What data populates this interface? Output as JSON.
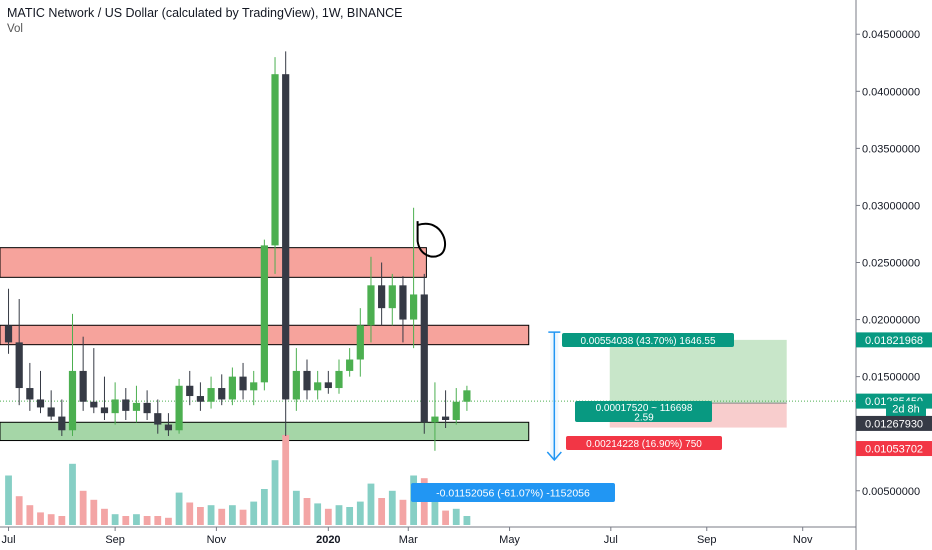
{
  "header": {
    "title": "MATIC Network / US Dollar (calculated by TradingView), 1W, BINANCE",
    "indicator": "Vol"
  },
  "colors": {
    "up": "#4caf50",
    "down": "#363a45",
    "vol_up": "#86cfc5",
    "vol_down": "#f3a5a5",
    "resistance_zone": "#f6a39c",
    "support_zone": "#a5d6a7",
    "measure": "#2196f3",
    "profit_zone": "#c8e6c9",
    "loss_zone": "#f8cdcd",
    "badge_green": "#089981",
    "badge_red": "#f23645",
    "badge_dark": "#363a45",
    "badge_blue": "#2196f3"
  },
  "chart_data": {
    "type": "candlestick",
    "title": "MATIC Network / US Dollar (calculated by TradingView), 1W, BINANCE",
    "interval": "1W",
    "x_ticks": [
      {
        "label": "Jul",
        "week": 0
      },
      {
        "label": "Sep",
        "week": 10
      },
      {
        "label": "Nov",
        "week": 19.5
      },
      {
        "label": "2020",
        "week": 30
      },
      {
        "label": "Mar",
        "week": 37.5
      },
      {
        "label": "May",
        "week": 47
      },
      {
        "label": "Jul",
        "week": 56.5
      },
      {
        "label": "Sep",
        "week": 65.5
      },
      {
        "label": "Nov",
        "week": 74.5
      }
    ],
    "y_ticks": [
      "0.04500000",
      "0.04000000",
      "0.03500000",
      "0.03000000",
      "0.02500000",
      "0.02000000",
      "0.01500000",
      "0.00500000"
    ],
    "y_tick_values": [
      0.045,
      0.04,
      0.035,
      0.03,
      0.025,
      0.02,
      0.015,
      0.005
    ],
    "ylim": [
      0.002,
      0.048
    ],
    "xlim": [
      -0.8,
      79.5
    ],
    "candles": [
      {
        "o": 0.0195,
        "h": 0.0227,
        "l": 0.017,
        "c": 0.018
      },
      {
        "o": 0.018,
        "h": 0.0218,
        "l": 0.0125,
        "c": 0.014
      },
      {
        "o": 0.014,
        "h": 0.0162,
        "l": 0.012,
        "c": 0.013
      },
      {
        "o": 0.013,
        "h": 0.0155,
        "l": 0.0118,
        "c": 0.0123
      },
      {
        "o": 0.0123,
        "h": 0.0138,
        "l": 0.0112,
        "c": 0.0115
      },
      {
        "o": 0.0115,
        "h": 0.013,
        "l": 0.0098,
        "c": 0.0103
      },
      {
        "o": 0.0103,
        "h": 0.0205,
        "l": 0.0098,
        "c": 0.0155
      },
      {
        "o": 0.0155,
        "h": 0.0185,
        "l": 0.012,
        "c": 0.0128
      },
      {
        "o": 0.0128,
        "h": 0.0175,
        "l": 0.0118,
        "c": 0.0123
      },
      {
        "o": 0.0123,
        "h": 0.015,
        "l": 0.0112,
        "c": 0.0118
      },
      {
        "o": 0.0118,
        "h": 0.0145,
        "l": 0.0108,
        "c": 0.013
      },
      {
        "o": 0.013,
        "h": 0.014,
        "l": 0.0112,
        "c": 0.012
      },
      {
        "o": 0.012,
        "h": 0.0142,
        "l": 0.011,
        "c": 0.0127
      },
      {
        "o": 0.0127,
        "h": 0.0138,
        "l": 0.0112,
        "c": 0.0118
      },
      {
        "o": 0.0118,
        "h": 0.013,
        "l": 0.01,
        "c": 0.0108
      },
      {
        "o": 0.0108,
        "h": 0.0118,
        "l": 0.0098,
        "c": 0.0103
      },
      {
        "o": 0.0103,
        "h": 0.0148,
        "l": 0.01,
        "c": 0.0142
      },
      {
        "o": 0.0142,
        "h": 0.0155,
        "l": 0.0125,
        "c": 0.0133
      },
      {
        "o": 0.0133,
        "h": 0.0145,
        "l": 0.012,
        "c": 0.0128
      },
      {
        "o": 0.0128,
        "h": 0.015,
        "l": 0.0122,
        "c": 0.014
      },
      {
        "o": 0.014,
        "h": 0.0152,
        "l": 0.0125,
        "c": 0.013
      },
      {
        "o": 0.013,
        "h": 0.0158,
        "l": 0.0125,
        "c": 0.015
      },
      {
        "o": 0.015,
        "h": 0.0162,
        "l": 0.013,
        "c": 0.0138
      },
      {
        "o": 0.0138,
        "h": 0.0155,
        "l": 0.0125,
        "c": 0.0145
      },
      {
        "o": 0.0145,
        "h": 0.027,
        "l": 0.0138,
        "c": 0.0265
      },
      {
        "o": 0.0265,
        "h": 0.043,
        "l": 0.024,
        "c": 0.0415
      },
      {
        "o": 0.0415,
        "h": 0.0435,
        "l": 0.0098,
        "c": 0.013
      },
      {
        "o": 0.013,
        "h": 0.0175,
        "l": 0.012,
        "c": 0.0155
      },
      {
        "o": 0.0155,
        "h": 0.0165,
        "l": 0.013,
        "c": 0.0138
      },
      {
        "o": 0.0138,
        "h": 0.0155,
        "l": 0.013,
        "c": 0.0145
      },
      {
        "o": 0.0145,
        "h": 0.0155,
        "l": 0.0135,
        "c": 0.014
      },
      {
        "o": 0.014,
        "h": 0.0165,
        "l": 0.0135,
        "c": 0.0155
      },
      {
        "o": 0.0155,
        "h": 0.0175,
        "l": 0.015,
        "c": 0.0165
      },
      {
        "o": 0.0165,
        "h": 0.021,
        "l": 0.015,
        "c": 0.0195
      },
      {
        "o": 0.0195,
        "h": 0.0255,
        "l": 0.018,
        "c": 0.023
      },
      {
        "o": 0.023,
        "h": 0.025,
        "l": 0.0195,
        "c": 0.021
      },
      {
        "o": 0.021,
        "h": 0.024,
        "l": 0.0195,
        "c": 0.023
      },
      {
        "o": 0.023,
        "h": 0.0238,
        "l": 0.018,
        "c": 0.02
      },
      {
        "o": 0.02,
        "h": 0.0298,
        "l": 0.0175,
        "c": 0.0222
      },
      {
        "o": 0.0222,
        "h": 0.024,
        "l": 0.01,
        "c": 0.011
      },
      {
        "o": 0.011,
        "h": 0.0145,
        "l": 0.0085,
        "c": 0.0115
      },
      {
        "o": 0.0115,
        "h": 0.0138,
        "l": 0.0105,
        "c": 0.0112
      },
      {
        "o": 0.0112,
        "h": 0.014,
        "l": 0.0108,
        "c": 0.0128
      },
      {
        "o": 0.0128,
        "h": 0.0142,
        "l": 0.012,
        "c": 0.0138
      }
    ],
    "volume": [
      {
        "v": 0.55,
        "up": true
      },
      {
        "v": 0.32,
        "up": false
      },
      {
        "v": 0.22,
        "up": false
      },
      {
        "v": 0.14,
        "up": false
      },
      {
        "v": 0.12,
        "up": false
      },
      {
        "v": 0.1,
        "up": false
      },
      {
        "v": 0.68,
        "up": true
      },
      {
        "v": 0.38,
        "up": false
      },
      {
        "v": 0.28,
        "up": false
      },
      {
        "v": 0.18,
        "up": false
      },
      {
        "v": 0.12,
        "up": true
      },
      {
        "v": 0.1,
        "up": false
      },
      {
        "v": 0.12,
        "up": true
      },
      {
        "v": 0.1,
        "up": false
      },
      {
        "v": 0.1,
        "up": false
      },
      {
        "v": 0.08,
        "up": false
      },
      {
        "v": 0.36,
        "up": true
      },
      {
        "v": 0.25,
        "up": false
      },
      {
        "v": 0.2,
        "up": false
      },
      {
        "v": 0.22,
        "up": true
      },
      {
        "v": 0.18,
        "up": false
      },
      {
        "v": 0.22,
        "up": true
      },
      {
        "v": 0.17,
        "up": false
      },
      {
        "v": 0.26,
        "up": true
      },
      {
        "v": 0.4,
        "up": true
      },
      {
        "v": 0.72,
        "up": true
      },
      {
        "v": 1.0,
        "up": false
      },
      {
        "v": 0.38,
        "up": true
      },
      {
        "v": 0.3,
        "up": false
      },
      {
        "v": 0.24,
        "up": true
      },
      {
        "v": 0.18,
        "up": false
      },
      {
        "v": 0.22,
        "up": true
      },
      {
        "v": 0.2,
        "up": true
      },
      {
        "v": 0.26,
        "up": true
      },
      {
        "v": 0.46,
        "up": true
      },
      {
        "v": 0.3,
        "up": false
      },
      {
        "v": 0.38,
        "up": true
      },
      {
        "v": 0.28,
        "up": false
      },
      {
        "v": 0.55,
        "up": true
      },
      {
        "v": 0.52,
        "up": false
      },
      {
        "v": 0.3,
        "up": true
      },
      {
        "v": 0.16,
        "up": false
      },
      {
        "v": 0.18,
        "up": true
      },
      {
        "v": 0.1,
        "up": true
      }
    ],
    "zones": [
      {
        "name": "resistance-zone-upper",
        "type": "resistance",
        "x0": -0.8,
        "x1": 39.2,
        "y0": 0.0237,
        "y1": 0.0263
      },
      {
        "name": "resistance-zone-lower",
        "type": "resistance",
        "x0": -0.8,
        "x1": 48.8,
        "y0": 0.0178,
        "y1": 0.0195
      },
      {
        "name": "support-zone",
        "type": "support",
        "x0": -0.8,
        "x1": 48.8,
        "y0": 0.0094,
        "y1": 0.011
      }
    ],
    "measure": {
      "x": 51.2,
      "y_from": 0.0189,
      "y_to": 0.0077,
      "label": "-0.01152056 (-61.07%) -1152056"
    },
    "position": {
      "x0": 56.4,
      "x1": 73.0,
      "entry": 0.0126793,
      "target": 0.01821968,
      "stop": 0.01053702,
      "target_label": "0.00554038 (43.70%) 1646.55",
      "entry_label_1": "0.00017520 ~ 116698",
      "entry_label_2": "2.59",
      "stop_label": "0.00214228 (16.90%) 750"
    },
    "current_price": 0.0128545,
    "price_labels": [
      {
        "name": "target-price-badge",
        "text": "0.01821968",
        "y": 0.01821968,
        "kind": "green"
      },
      {
        "name": "last-price-badge",
        "text": "0.01285450",
        "y": 0.0128545,
        "kind": "green"
      },
      {
        "name": "countdown-badge",
        "text": "2d 8h",
        "y": 0.0122,
        "kind": "green-small"
      },
      {
        "name": "entry-price-badge",
        "text": "0.01267930",
        "y": 0.0109,
        "kind": "dark"
      },
      {
        "name": "stop-price-badge",
        "text": "0.01053702",
        "y": 0.0087,
        "kind": "red"
      }
    ],
    "annotation": {
      "name": "hand-drawn-circle",
      "week": 39.5,
      "y": 0.0267
    }
  }
}
